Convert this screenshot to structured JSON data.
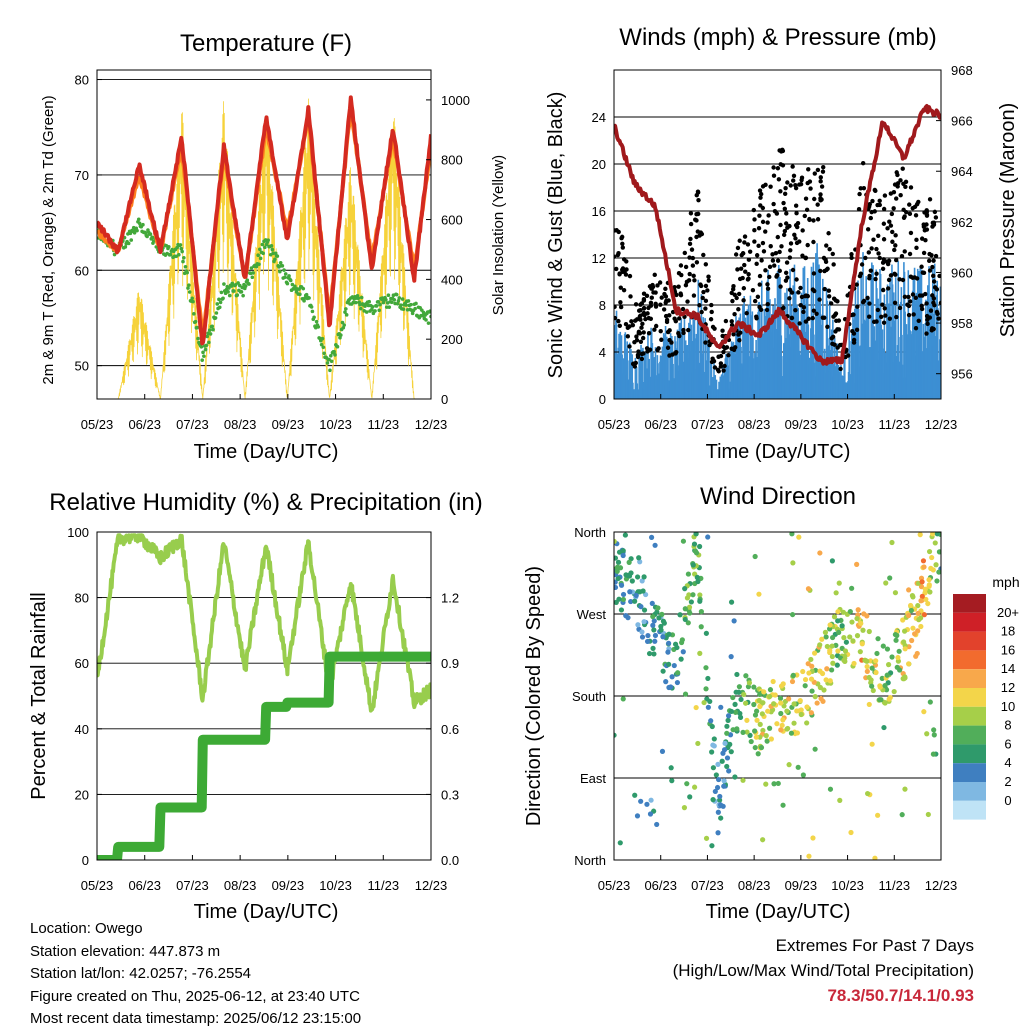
{
  "panels": {
    "temperature": {
      "title": "Temperature (F)",
      "ylabel_left": "2m & 9m T (Red, Orange) & 2m Td (Green)",
      "ylabel_right": "Solar Insolation (Yellow)",
      "xlabel": "Time (Day/UTC)"
    },
    "winds": {
      "title": "Winds (mph) & Pressure (mb)",
      "ylabel_left": "Sonic Wind & Gust (Blue, Black)",
      "ylabel_right": "Station Pressure (Maroon)",
      "xlabel": "Time (Day/UTC)"
    },
    "humidity": {
      "title": "Relative Humidity (%) & Precipitation (in)",
      "ylabel_left": "Percent & Total Rainfall",
      "xlabel": "Time (Day/UTC)"
    },
    "direction": {
      "title": "Wind Direction",
      "ylabel_left": "Direction (Colored By Speed)",
      "xlabel": "Time (Day/UTC)",
      "legend_title": "mph",
      "legend_labels": [
        "20+",
        "18",
        "16",
        "14",
        "12",
        "10",
        "8",
        "6",
        "4",
        "2",
        "0"
      ],
      "legend_colors": [
        "#a51c22",
        "#cf2027",
        "#e2422c",
        "#f26b2e",
        "#f8a84b",
        "#f3d54a",
        "#a6cf49",
        "#51ae5a",
        "#2f9a6b",
        "#3f7fc0",
        "#7fb8e2",
        "#bfe3f6"
      ]
    }
  },
  "info": {
    "location": "Location: Owego",
    "elevation": "Station elevation: 447.873 m",
    "latlon": "Station lat/lon: 42.0257; -76.2554",
    "created": "Figure created on Thu, 2025-06-12, at 23:40 UTC",
    "latest": "Most recent data timestamp: 2025/06/12 23:15:00"
  },
  "extremes": {
    "line1": "Extremes For Past 7 Days",
    "line2": "(High/Low/Max Wind/Total Precipitation)",
    "values": "78.3/50.7/14.1/0.93"
  },
  "chart_data": [
    {
      "type": "line",
      "title": "Temperature (F)",
      "xlabel": "Time (Day/UTC)",
      "ylabel": "2m & 9m T (Red, Orange) & 2m Td (Green)",
      "y2label": "Solar Insolation (Yellow)",
      "x_ticks": [
        "05/23",
        "06/23",
        "07/23",
        "08/23",
        "09/23",
        "10/23",
        "11/23",
        "12/23"
      ],
      "x": [
        5.0,
        5.5,
        6.0,
        6.5,
        7.0,
        7.5,
        8.0,
        8.5,
        9.0,
        9.5,
        10.0,
        10.5,
        11.0,
        11.5,
        12.0,
        12.5,
        12.9
      ],
      "ylim": [
        46.5,
        81
      ],
      "y_ticks": [
        50,
        60,
        70,
        80
      ],
      "y2lim": [
        0,
        1100
      ],
      "y2_ticks": [
        0,
        200,
        400,
        600,
        800,
        1000
      ],
      "colors": {
        "t2m": "#d42a20",
        "t9m": "#ff7f1e",
        "td": "#42a83a",
        "solar": "#f6d23a"
      },
      "series": [
        {
          "name": "2m T",
          "axis": "left",
          "values": [
            65,
            62,
            71,
            62,
            74,
            52,
            73,
            59,
            76,
            63,
            77,
            54,
            78,
            60,
            75,
            59,
            74
          ]
        },
        {
          "name": "9m T",
          "axis": "left",
          "values": [
            64,
            62,
            70,
            62,
            73,
            53,
            72,
            59,
            75,
            64,
            76,
            55,
            77,
            61,
            74,
            60,
            73
          ]
        },
        {
          "name": "2m Td",
          "axis": "left",
          "values": [
            64,
            62,
            65,
            62,
            62,
            51,
            58,
            58,
            63,
            59,
            57,
            50,
            57,
            56,
            57,
            56,
            55
          ]
        },
        {
          "name": "Solar Insolation",
          "axis": "right",
          "values": [
            0,
            0,
            380,
            0,
            1000,
            0,
            1010,
            0,
            1020,
            0,
            1020,
            0,
            800,
            0,
            1010,
            0,
            0
          ]
        }
      ]
    },
    {
      "type": "line",
      "title": "Winds (mph) & Pressure (mb)",
      "xlabel": "Time (Day/UTC)",
      "ylabel": "Sonic Wind & Gust (Blue, Black)",
      "y2label": "Station Pressure (Maroon)",
      "x_ticks": [
        "05/23",
        "06/23",
        "07/23",
        "08/23",
        "09/23",
        "10/23",
        "11/23",
        "12/23"
      ],
      "x": [
        5.0,
        5.5,
        6.0,
        6.5,
        7.0,
        7.5,
        8.0,
        8.5,
        9.0,
        9.5,
        10.0,
        10.5,
        11.0,
        11.5,
        12.0,
        12.5,
        12.9
      ],
      "ylim": [
        0,
        28
      ],
      "y_ticks": [
        0,
        4,
        8,
        12,
        16,
        20,
        24
      ],
      "y2lim": [
        955,
        968
      ],
      "y2_ticks": [
        956,
        958,
        960,
        962,
        964,
        966,
        968
      ],
      "colors": {
        "wind": "#3c8fd3",
        "gust": "#000000",
        "pressure": "#a0191c"
      },
      "series": [
        {
          "name": "Sonic Wind",
          "axis": "left",
          "values": [
            6,
            3,
            5,
            4,
            8,
            1,
            6,
            7,
            9,
            8,
            10,
            2,
            9,
            8,
            9,
            8,
            9
          ]
        },
        {
          "name": "Gust",
          "axis": "left",
          "values": [
            14,
            6,
            8,
            7,
            14,
            3,
            10,
            13,
            16,
            14,
            16,
            4,
            15,
            13,
            15,
            12,
            14
          ]
        },
        {
          "name": "Station Pressure",
          "axis": "right",
          "values": [
            965.8,
            963.5,
            962.6,
            958.5,
            958.3,
            957.0,
            958.0,
            957.5,
            958.5,
            957.5,
            956.5,
            956.5,
            962.0,
            966.0,
            964.5,
            966.5,
            966.2
          ]
        }
      ]
    },
    {
      "type": "line",
      "title": "Relative Humidity (%) & Precipitation (in)",
      "xlabel": "Time (Day/UTC)",
      "ylabel": "Percent & Total Rainfall",
      "x_ticks": [
        "05/23",
        "06/23",
        "07/23",
        "08/23",
        "09/23",
        "10/23",
        "11/23",
        "12/23"
      ],
      "x": [
        5.0,
        5.5,
        6.0,
        6.5,
        7.0,
        7.5,
        8.0,
        8.5,
        9.0,
        9.5,
        10.0,
        10.5,
        11.0,
        11.5,
        12.0,
        12.5,
        12.9
      ],
      "ylim": [
        0,
        100
      ],
      "y_ticks": [
        0,
        20,
        40,
        60,
        80,
        100
      ],
      "y2lim": [
        0,
        1.5
      ],
      "y2_ticks": [
        "0.0",
        "0.3",
        "0.6",
        "0.9",
        "1.2"
      ],
      "colors": {
        "rh": "#98cd4d",
        "precip": "#3daa35"
      },
      "series": [
        {
          "name": "Relative Humidity",
          "axis": "left",
          "values": [
            55,
            98,
            99,
            92,
            98,
            49,
            97,
            58,
            96,
            58,
            97,
            52,
            85,
            45,
            86,
            48,
            52
          ]
        },
        {
          "name": "Total Rainfall",
          "axis": "right",
          "values": [
            0,
            0.06,
            0.06,
            0.24,
            0.24,
            0.55,
            0.55,
            0.55,
            0.7,
            0.72,
            0.72,
            0.93,
            0.93,
            0.93,
            0.93,
            0.93,
            0.93
          ]
        }
      ]
    },
    {
      "type": "scatter",
      "title": "Wind Direction",
      "xlabel": "Time (Day/UTC)",
      "ylabel": "Direction (Colored By Speed)",
      "x_ticks": [
        "05/23",
        "06/23",
        "07/23",
        "08/23",
        "09/23",
        "10/23",
        "11/23",
        "12/23"
      ],
      "y_ticks": [
        "North",
        "East",
        "South",
        "West",
        "North"
      ],
      "ylim": [
        0,
        360
      ],
      "colorbar": {
        "label": "mph",
        "ticks": [
          "0",
          "2",
          "4",
          "6",
          "8",
          "10",
          "12",
          "14",
          "16",
          "18",
          "20+"
        ]
      },
      "series": [
        {
          "name": "Wind Direction (deg)",
          "x": [
            5.0,
            5.5,
            6.0,
            6.5,
            7.0,
            7.5,
            8.0,
            8.5,
            9.0,
            9.5,
            10.0,
            10.5,
            11.0,
            11.5,
            12.0,
            12.5,
            12.9
          ],
          "values": [
            320,
            290,
            250,
            210,
            350,
            60,
            180,
            150,
            175,
            170,
            210,
            250,
            240,
            200,
            230,
            300,
            350
          ],
          "speeds": [
            6,
            3,
            4,
            5,
            8,
            2,
            7,
            9,
            10,
            9,
            11,
            7,
            12,
            8,
            10,
            12,
            6
          ]
        }
      ]
    }
  ]
}
